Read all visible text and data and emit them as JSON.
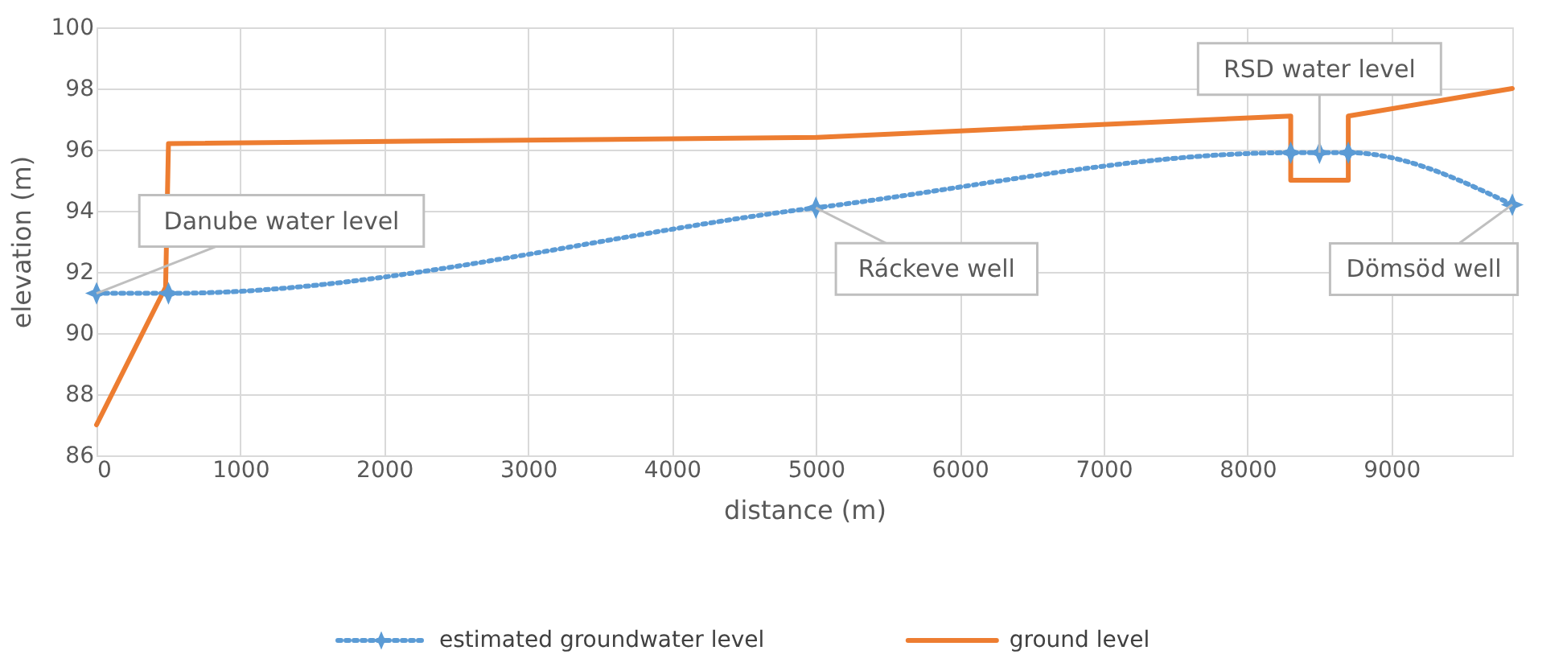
{
  "chart_data": {
    "type": "line",
    "xlabel": "distance (m)",
    "ylabel": "elevation (m)",
    "xlim": [
      0,
      9840
    ],
    "xticks": [
      0,
      1000,
      2000,
      3000,
      4000,
      5000,
      6000,
      7000,
      8000,
      9000
    ],
    "ylim": [
      86,
      100
    ],
    "yticks": [
      86,
      88,
      90,
      92,
      94,
      96,
      98,
      100
    ],
    "grid": true,
    "legend": "bottom",
    "series": [
      {
        "name": "estimated groundwater level",
        "color": "#5b9bd5",
        "line_style": "dotted",
        "marker": "star",
        "x": [
          0,
          500,
          5000,
          8300,
          8500,
          8700,
          9840
        ],
        "values": [
          91.3,
          91.3,
          94.1,
          95.9,
          95.9,
          95.9,
          94.2
        ]
      },
      {
        "name": "ground level",
        "color": "#ed7d31",
        "line_style": "solid",
        "marker": "none",
        "x": [
          0,
          480,
          500,
          5000,
          8300,
          8300,
          8700,
          8700,
          9840
        ],
        "values": [
          87,
          91.5,
          96.2,
          96.4,
          97.1,
          95,
          95,
          97.1,
          98
        ]
      }
    ],
    "annotations": [
      {
        "text": "Danube water level",
        "x": 0,
        "y": 91.3
      },
      {
        "text": "Ráckeve well",
        "x": 5000,
        "y": 94.1
      },
      {
        "text": "RSD water level",
        "x": 8500,
        "y": 95.9
      },
      {
        "text": "Dömsöd well",
        "x": 9840,
        "y": 94.2
      }
    ]
  }
}
